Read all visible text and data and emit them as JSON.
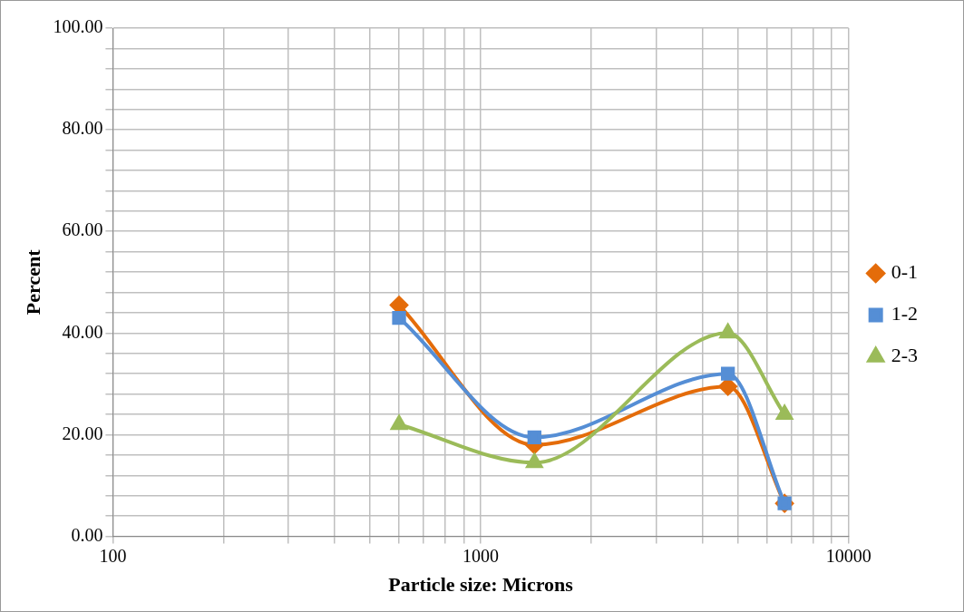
{
  "chart_data": {
    "type": "line",
    "xlabel": "Particle size: Microns",
    "ylabel": "Percent",
    "log": "x",
    "xlim": [
      100,
      10000
    ],
    "xticks": [
      100,
      {
        "value": 200,
        "label": null
      },
      {
        "value": 300,
        "label": null
      },
      {
        "value": 400,
        "label": null
      },
      {
        "value": 500,
        "label": null
      },
      {
        "value": 600,
        "label": null
      },
      {
        "value": 700,
        "label": null
      },
      {
        "value": 800,
        "label": null
      },
      {
        "value": 900,
        "label": null
      },
      1000,
      {
        "value": 2000,
        "label": null
      },
      {
        "value": 3000,
        "label": null
      },
      {
        "value": 4000,
        "label": null
      },
      {
        "value": 5000,
        "label": null
      },
      {
        "value": 6000,
        "label": null
      },
      {
        "value": 7000,
        "label": null
      },
      {
        "value": 8000,
        "label": null
      },
      {
        "value": 9000,
        "label": null
      },
      10000
    ],
    "ylim": [
      0,
      100
    ],
    "yticks": [
      {
        "value": 0,
        "label": "0.00"
      },
      {
        "value": 4,
        "label": null
      },
      {
        "value": 8,
        "label": null
      },
      {
        "value": 12,
        "label": null
      },
      {
        "value": 16,
        "label": null
      },
      {
        "value": 20,
        "label": "20.00"
      },
      {
        "value": 24,
        "label": null
      },
      {
        "value": 28,
        "label": null
      },
      {
        "value": 32,
        "label": null
      },
      {
        "value": 36,
        "label": null
      },
      {
        "value": 40,
        "label": "40.00"
      },
      {
        "value": 44,
        "label": null
      },
      {
        "value": 48,
        "label": null
      },
      {
        "value": 52,
        "label": null
      },
      {
        "value": 56,
        "label": null
      },
      {
        "value": 60,
        "label": "60.00"
      },
      {
        "value": 64,
        "label": null
      },
      {
        "value": 68,
        "label": null
      },
      {
        "value": 72,
        "label": null
      },
      {
        "value": 76,
        "label": null
      },
      {
        "value": 80,
        "label": "80.00"
      },
      {
        "value": 84,
        "label": null
      },
      {
        "value": 88,
        "label": null
      },
      {
        "value": 92,
        "label": null
      },
      {
        "value": 96,
        "label": null
      },
      {
        "value": 100,
        "label": "100.00"
      }
    ],
    "grid": true,
    "legend": "right",
    "line_style": "solid",
    "x": [
      600,
      1400,
      4700,
      6700
    ],
    "series": [
      {
        "name": "0-1",
        "color": "#e46c0a",
        "marker": "diamond",
        "values": [
          45.5,
          18,
          29.5,
          6.5
        ]
      },
      {
        "name": "1-2",
        "color": "#558ed5",
        "marker": "square",
        "values": [
          43,
          19.5,
          32,
          6.5
        ]
      },
      {
        "name": "2-3",
        "color": "#9bbb59",
        "marker": "triangle",
        "values": [
          22,
          14.5,
          40,
          24
        ]
      }
    ]
  }
}
